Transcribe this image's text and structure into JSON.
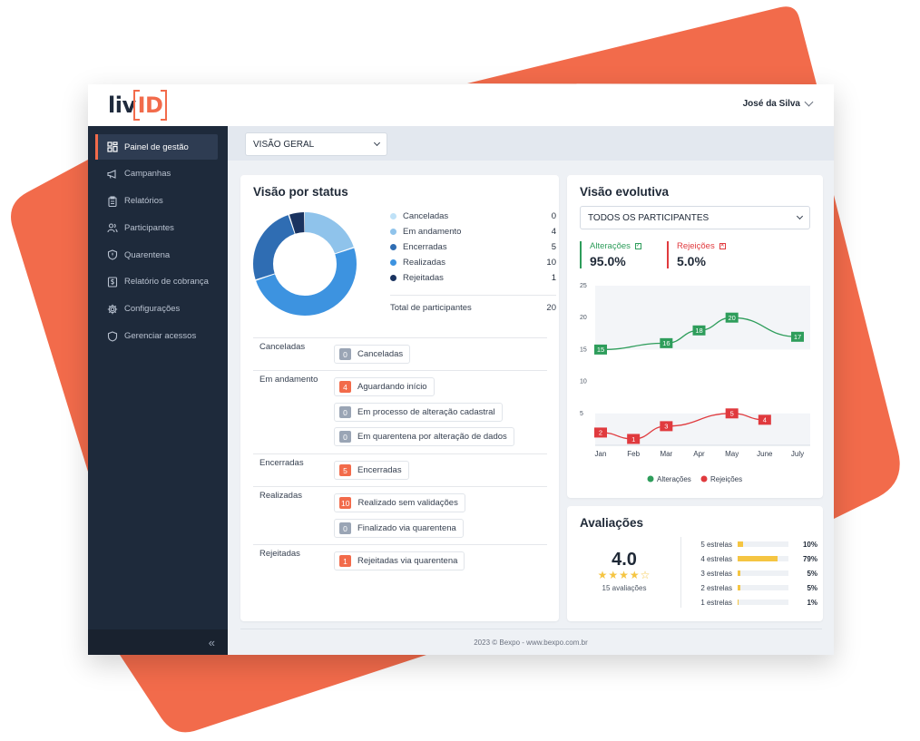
{
  "colors": {
    "accent": "#f26b4b",
    "sidebar_bg": "#1e2a3b",
    "green": "#2e9d5b",
    "red": "#e03a3e",
    "star": "#f5c542"
  },
  "app": {
    "logo_prefix": "liv",
    "logo_id": "ID"
  },
  "header": {
    "user_name": "José da Silva"
  },
  "sidebar": {
    "items": [
      {
        "label": "Painel de gestão",
        "icon": "dashboard-icon"
      },
      {
        "label": "Campanhas",
        "icon": "megaphone-icon"
      },
      {
        "label": "Relatórios",
        "icon": "clipboard-icon"
      },
      {
        "label": "Participantes",
        "icon": "users-icon"
      },
      {
        "label": "Quarentena",
        "icon": "shield-alert-icon"
      },
      {
        "label": "Relatório de cobrança",
        "icon": "invoice-icon"
      },
      {
        "label": "Configurações",
        "icon": "gear-icon"
      },
      {
        "label": "Gerenciar acessos",
        "icon": "shield-icon"
      }
    ],
    "collapse_label": "«"
  },
  "filter": {
    "view_value": "VISÃO GERAL"
  },
  "status_card": {
    "title": "Visão por status",
    "legend": [
      {
        "label": "Canceladas",
        "value": "0",
        "color": "#bfe1f7"
      },
      {
        "label": "Em andamento",
        "value": "4",
        "color": "#8fc3eb"
      },
      {
        "label": "Encerradas",
        "value": "5",
        "color": "#2f6db3"
      },
      {
        "label": "Realizadas",
        "value": "10",
        "color": "#3d93e0"
      },
      {
        "label": "Rejeitadas",
        "value": "1",
        "color": "#1a3360"
      }
    ],
    "total_label": "Total de participantes",
    "total_value": "20",
    "groups": [
      {
        "label": "Canceladas",
        "chips": [
          {
            "count": "0",
            "text": "Canceladas",
            "badge_color": "#9aa5b5"
          }
        ]
      },
      {
        "label": "Em andamento",
        "chips": [
          {
            "count": "4",
            "text": "Aguardando início",
            "badge_color": "#f26b4b"
          },
          {
            "count": "0",
            "text": "Em processo de alteração cadastral",
            "badge_color": "#9aa5b5"
          },
          {
            "count": "0",
            "text": "Em quarentena por alteração de dados",
            "badge_color": "#9aa5b5"
          }
        ]
      },
      {
        "label": "Encerradas",
        "chips": [
          {
            "count": "5",
            "text": "Encerradas",
            "badge_color": "#f26b4b"
          }
        ]
      },
      {
        "label": "Realizadas",
        "chips": [
          {
            "count": "10",
            "text": "Realizado sem validações",
            "badge_color": "#f26b4b"
          },
          {
            "count": "0",
            "text": "Finalizado via quarentena",
            "badge_color": "#9aa5b5"
          }
        ]
      },
      {
        "label": "Rejeitadas",
        "chips": [
          {
            "count": "1",
            "text": "Rejeitadas via quarentena",
            "badge_color": "#f26b4b"
          }
        ]
      }
    ]
  },
  "evolution_card": {
    "title": "Visão evolutiva",
    "participants_filter": "TODOS OS PARTICIPANTES",
    "kpis": [
      {
        "label": "Alterações",
        "value": "95.0%",
        "color": "#2e9d5b",
        "mark": "✓"
      },
      {
        "label": "Rejeições",
        "value": "5.0%",
        "color": "#e03a3e",
        "mark": "✕"
      }
    ]
  },
  "ratings_card": {
    "title": "Avaliações",
    "score": "4.0",
    "stars_filled": 4,
    "stars_total": 5,
    "count_label": "15 avaliações",
    "rows": [
      {
        "label": "5 estrelas",
        "percent": "10%",
        "fraction": 0.1
      },
      {
        "label": "4 estrelas",
        "percent": "79%",
        "fraction": 0.79
      },
      {
        "label": "3 estrelas",
        "percent": "5%",
        "fraction": 0.05
      },
      {
        "label": "2 estrelas",
        "percent": "5%",
        "fraction": 0.05
      },
      {
        "label": "1 estrelas",
        "percent": "1%",
        "fraction": 0.01
      }
    ]
  },
  "footer": {
    "text": "2023 © Bexpo - www.bexpo.com.br"
  },
  "chart_data": [
    {
      "type": "pie",
      "categories": [
        "Canceladas",
        "Em andamento",
        "Encerradas",
        "Realizadas",
        "Rejeitadas"
      ],
      "values": [
        0,
        4,
        5,
        10,
        1
      ]
    },
    {
      "type": "line",
      "categories": [
        "Jan",
        "Feb",
        "Mar",
        "Apr",
        "May",
        "June",
        "July"
      ],
      "ylim": [
        0,
        25
      ],
      "yticks": [
        5,
        10,
        15,
        20,
        25
      ],
      "series": [
        {
          "name": "Alterações",
          "color": "#2e9d5b",
          "values": [
            15,
            null,
            16,
            18,
            20,
            null,
            17
          ],
          "x": [
            "Jan",
            "Mar",
            "Mar",
            "Apr",
            "May",
            "July",
            "July"
          ],
          "points": [
            {
              "x": "Jan",
              "y": 15
            },
            {
              "x": "Mar",
              "y": 16
            },
            {
              "x": "Apr",
              "y": 18
            },
            {
              "x": "May",
              "y": 20
            },
            {
              "x": "July",
              "y": 17
            }
          ]
        },
        {
          "name": "Rejeições",
          "color": "#e03a3e",
          "points": [
            {
              "x": "Jan",
              "y": 2
            },
            {
              "x": "Feb",
              "y": 1
            },
            {
              "x": "Mar",
              "y": 3
            },
            {
              "x": "May",
              "y": 5
            },
            {
              "x": "June",
              "y": 4
            }
          ]
        }
      ],
      "legend": [
        "Alterações",
        "Rejeições"
      ]
    }
  ]
}
